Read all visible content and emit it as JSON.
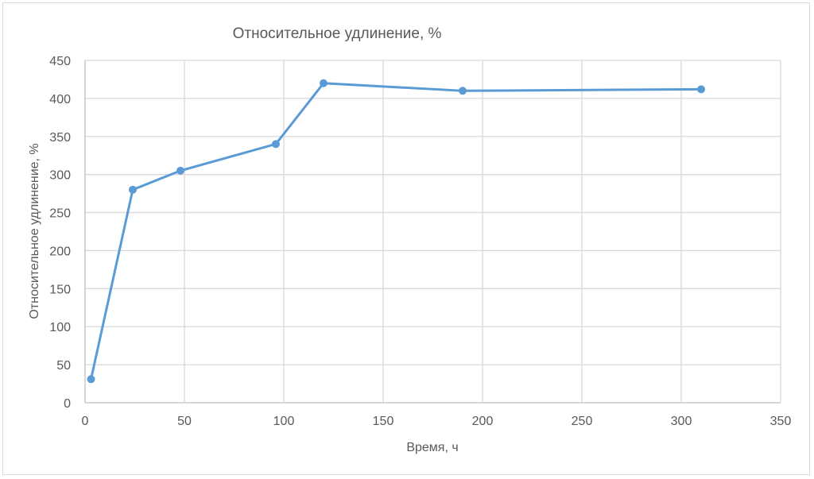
{
  "chart_data": {
    "type": "line",
    "title": "Относительное удлинение, %",
    "xlabel": "Время, ч",
    "ylabel": "Относительное удлинение, %",
    "xlim": [
      0,
      350
    ],
    "ylim": [
      0,
      450
    ],
    "xticks": [
      0,
      50,
      100,
      150,
      200,
      250,
      300,
      350
    ],
    "yticks": [
      0,
      50,
      100,
      150,
      200,
      250,
      300,
      350,
      400,
      450
    ],
    "grid": true,
    "legend": "none",
    "series": [
      {
        "x": [
          3,
          24,
          48,
          96,
          120,
          190,
          310
        ],
        "y": [
          31,
          280,
          305,
          340,
          420,
          410,
          412
        ],
        "color": "#5b9bd5"
      }
    ]
  }
}
